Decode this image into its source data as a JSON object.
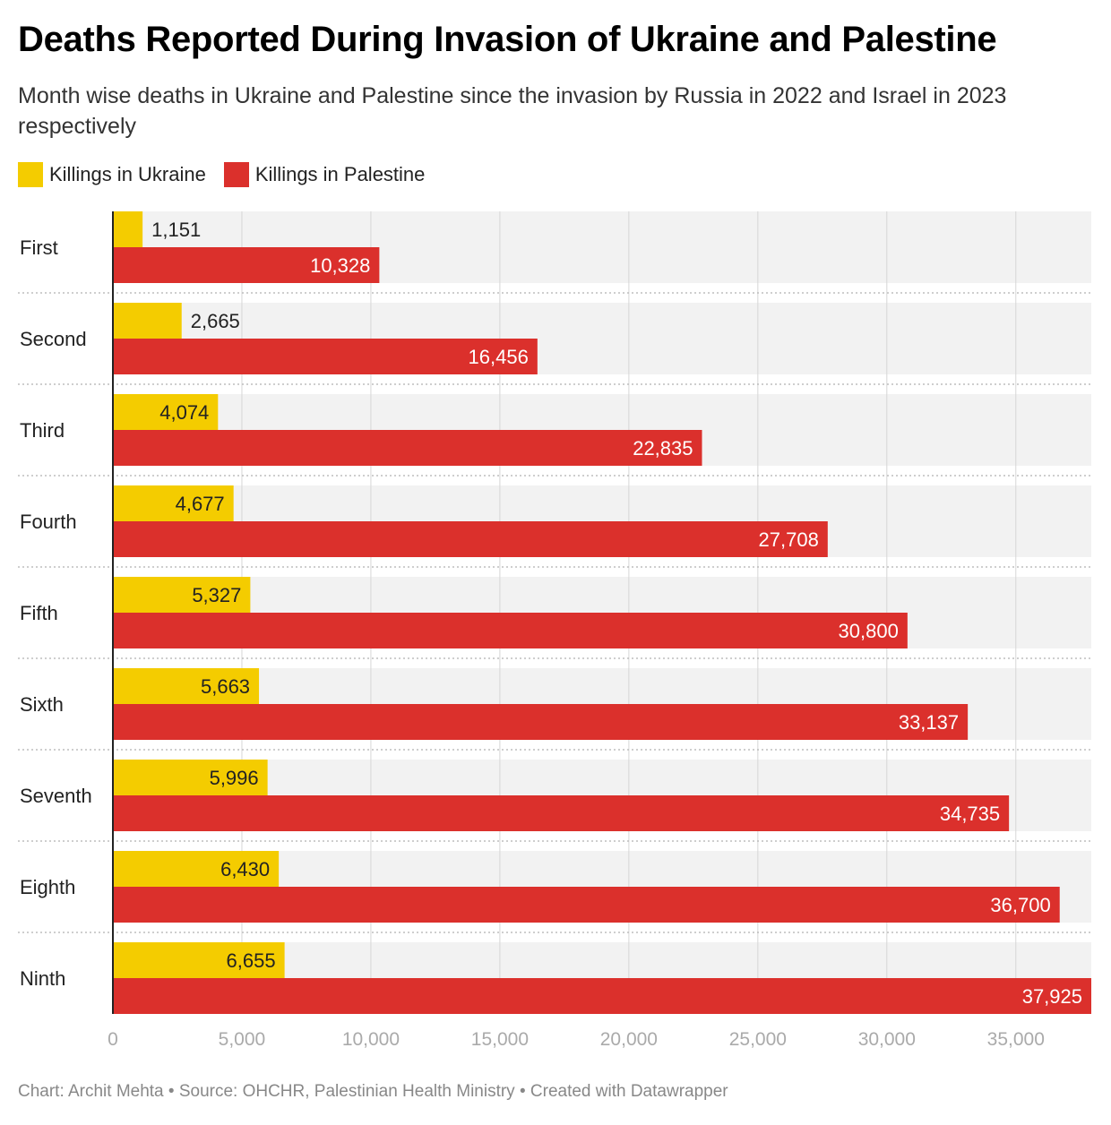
{
  "chart_data": {
    "type": "bar",
    "orientation": "horizontal",
    "title": "Deaths Reported During Invasion of Ukraine and Palestine",
    "subtitle": "Month wise deaths in Ukraine and Palestine since the invasion by Russia in 2022 and Israel in 2023 respectively",
    "categories": [
      "First",
      "Second",
      "Third",
      "Fourth",
      "Fifth",
      "Sixth",
      "Seventh",
      "Eighth",
      "Ninth"
    ],
    "series": [
      {
        "name": "Killings in Ukraine",
        "color": "#f4cc00",
        "values": [
          1151,
          2665,
          4074,
          4677,
          5327,
          5663,
          5996,
          6430,
          6655
        ],
        "labels": [
          "1,151",
          "2,665",
          "4,074",
          "4,677",
          "5,327",
          "5,663",
          "5,996",
          "6,430",
          "6,655"
        ]
      },
      {
        "name": "Killings in Palestine",
        "color": "#db302c",
        "values": [
          10328,
          16456,
          22835,
          27708,
          30800,
          33137,
          34735,
          36700,
          37925
        ],
        "labels": [
          "10,328",
          "16,456",
          "22,835",
          "27,708",
          "30,800",
          "33,137",
          "34,735",
          "36,700",
          "37,925"
        ]
      }
    ],
    "xlim": [
      0,
      37925
    ],
    "xticks": [
      0,
      5000,
      10000,
      15000,
      20000,
      25000,
      30000,
      35000
    ],
    "xtick_labels": [
      "0",
      "5,000",
      "10,000",
      "15,000",
      "20,000",
      "25,000",
      "30,000",
      "35,000"
    ],
    "grid": true,
    "legend_position": "top-left"
  },
  "footer": "Chart: Archit Mehta • Source: OHCHR, Palestinian Health Ministry • Created with Datawrapper"
}
